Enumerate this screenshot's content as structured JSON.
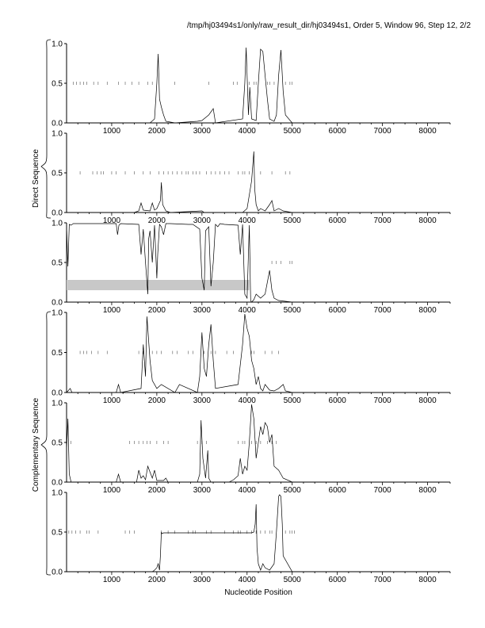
{
  "header": {
    "title": "/tmp/hj03494s1/only/raw_result_dir/hj03494s1, Order 5, Window 96, Step 12, 2/2"
  },
  "group_labels": {
    "direct": "Direct Sequence",
    "complementary": "Complementary Sequence"
  },
  "xlabel": "Nucleotide Position",
  "chart_data": {
    "type": "line",
    "title": "/tmp/hj03494s1/only/raw_result_dir/hj03494s1, Order 5, Window 96, Step 12, 2/2",
    "xlabel": "Nucleotide Position",
    "xlim": [
      0,
      8500
    ],
    "ylim": [
      0,
      1
    ],
    "x_ticks": [
      1000,
      2000,
      3000,
      4000,
      5000,
      6000,
      7000,
      8000
    ],
    "y_ticks": [
      0.0,
      0.5,
      1.0
    ],
    "y_tick_labels": [
      "0.0",
      "0.5",
      "1.0"
    ],
    "grid": false,
    "panels": [
      {
        "group": "Direct Sequence",
        "series": [
          {
            "x": [
              0,
              1850,
              1950,
              2000,
              2030,
              2060,
              2100,
              2150,
              2200,
              2400,
              2900,
              3000,
              3150,
              3250,
              3300,
              3900,
              3950,
              3980,
              4000,
              4030,
              4060,
              4100,
              4200,
              4250,
              4300,
              4350,
              4400,
              4450,
              4500,
              4600,
              4650,
              4700,
              4750,
              4800,
              4850,
              5000,
              8500
            ],
            "y": [
              0,
              0,
              0.05,
              0.5,
              0.87,
              0.3,
              0.2,
              0.1,
              0.02,
              0,
              0.02,
              0.03,
              0.1,
              0.18,
              0,
              0.05,
              0.5,
              0.95,
              0.6,
              0.1,
              0.45,
              0.05,
              0.03,
              0.5,
              0.93,
              0.9,
              0.6,
              0.3,
              0.05,
              0.02,
              0.1,
              0.6,
              0.92,
              0.4,
              0.1,
              0,
              0
            ]
          }
        ],
        "markers": [
          150,
          220,
          300,
          380,
          450,
          600,
          700,
          900,
          1150,
          1300,
          1450,
          1600,
          1800,
          1900,
          2400,
          3150,
          3700,
          3780,
          4050,
          4150,
          4200,
          4450,
          4500,
          4600,
          4850,
          4950,
          5000
        ]
      },
      {
        "group": "Direct Sequence",
        "series": [
          {
            "x": [
              0,
              1500,
              1600,
              1650,
              1700,
              1850,
              1900,
              1950,
              2000,
              2080,
              2100,
              2130,
              2200,
              2300,
              3000,
              3050,
              3900,
              4000,
              4100,
              4150,
              4170,
              4200,
              4250,
              4300,
              4400,
              4500,
              4550,
              4600,
              4700,
              4800,
              5000,
              8500
            ],
            "y": [
              0,
              0,
              0.02,
              0.12,
              0.03,
              0.02,
              0.12,
              0.03,
              0.05,
              0.15,
              0.38,
              0.1,
              0.02,
              0,
              0.02,
              0,
              0,
              0.05,
              0.4,
              0.77,
              0.3,
              0.1,
              0.02,
              0.05,
              0.02,
              0.1,
              0.15,
              0.02,
              0.05,
              0.02,
              0,
              0
            ]
          }
        ],
        "markers": [
          300,
          580,
          680,
          760,
          820,
          1000,
          1100,
          1300,
          1500,
          1700,
          1850,
          2050,
          2150,
          2250,
          2350,
          2450,
          2550,
          2650,
          2700,
          2800,
          2870,
          2950,
          3100,
          3200,
          3300,
          3400,
          3500,
          3600,
          3800,
          3900,
          3950,
          4050,
          4300,
          4550,
          4850,
          4950
        ]
      },
      {
        "group": "",
        "series": [
          {
            "x": [
              0,
              30,
              60,
              100,
              150,
              1100,
              1130,
              1160,
              1200,
              1600,
              1650,
              1700,
              1750,
              1800,
              1820,
              1850,
              1900,
              1950,
              2000,
              2020,
              2060,
              2100,
              2150,
              2200,
              2300,
              2700,
              2800,
              2950,
              3000,
              3050,
              3080,
              3150,
              3200,
              3250,
              3300,
              3350,
              3400,
              3500,
              3800,
              3850,
              3900,
              3950,
              4000,
              4050,
              4080,
              4100,
              4150,
              4200,
              4300,
              4400,
              4500,
              4550,
              4600,
              4700,
              5000,
              8500
            ],
            "y": [
              0.95,
              0.45,
              0.98,
              0.97,
              0.99,
              0.99,
              0.85,
              0.97,
              0.99,
              0.98,
              0.6,
              0.92,
              0.5,
              0.1,
              0.8,
              0.9,
              0.5,
              0.97,
              0.3,
              0.6,
              0.98,
              0.95,
              0.85,
              0.99,
              0.99,
              0.98,
              0.98,
              0.92,
              0.3,
              0.15,
              0.9,
              0.95,
              0.2,
              0.5,
              0.98,
              0.95,
              0.99,
              0.98,
              0.97,
              0.6,
              0.98,
              0.1,
              0.05,
              0.97,
              0.02,
              0,
              0.03,
              0.1,
              0.05,
              0.1,
              0.4,
              0.15,
              0.05,
              0.02,
              0,
              0
            ]
          }
        ],
        "band": {
          "x": [
            0,
            4050
          ],
          "y": [
            0.15,
            0.28
          ]
        },
        "markers": [
          4550,
          4650,
          4750,
          4950,
          5000
        ]
      },
      {
        "group": "Complementary Sequence",
        "series": [
          {
            "x": [
              0,
              80,
              120,
              1100,
              1150,
              1200,
              1650,
              1700,
              1750,
              1780,
              1800,
              1850,
              1900,
              2000,
              2100,
              2400,
              2500,
              2900,
              2950,
              3000,
              3050,
              3100,
              3150,
              3200,
              3250,
              3300,
              3800,
              3900,
              3950,
              4000,
              4050,
              4100,
              4150,
              4200,
              4250,
              4300,
              4350,
              4400,
              4500,
              4600,
              4700,
              4800,
              4850,
              5000,
              8500
            ],
            "y": [
              0,
              0.05,
              0,
              0,
              0.1,
              0,
              0.05,
              0.6,
              0.2,
              0.95,
              0.8,
              0.4,
              0.15,
              0.05,
              0.1,
              0,
              0.1,
              0,
              0.2,
              0.75,
              0.3,
              0.2,
              0.6,
              0.85,
              0.4,
              0.05,
              0.1,
              0.6,
              0.98,
              0.8,
              0.7,
              0.4,
              0.3,
              0.1,
              0.2,
              0.05,
              0.02,
              0.1,
              0.03,
              0.02,
              0.05,
              0.1,
              0.02,
              0,
              0
            ]
          }
        ],
        "markers": [
          300,
          380,
          450,
          550,
          700,
          900,
          1600,
          1700,
          1900,
          2000,
          2100,
          2350,
          2450,
          2700,
          2800,
          3050,
          3200,
          3300,
          3550,
          3700,
          4100,
          4150,
          4400,
          4550,
          4700
        ]
      },
      {
        "group": "Complementary Sequence",
        "series": [
          {
            "x": [
              0,
              30,
              60,
              100,
              1100,
              1150,
              1200,
              1550,
              1600,
              1650,
              1700,
              1750,
              1800,
              1900,
              1950,
              2000,
              2150,
              2200,
              2250,
              2900,
              2950,
              2980,
              3020,
              3080,
              3130,
              3150,
              3200,
              3600,
              3700,
              3800,
              3850,
              3900,
              3950,
              4000,
              4050,
              4100,
              4150,
              4200,
              4250,
              4300,
              4350,
              4400,
              4450,
              4500,
              4550,
              4600,
              4700,
              4800,
              5000,
              8500
            ],
            "y": [
              0.4,
              0.8,
              0.1,
              0,
              0,
              0.1,
              0,
              0,
              0.15,
              0.05,
              0.08,
              0.03,
              0.2,
              0.05,
              0.15,
              0.02,
              0.02,
              0.05,
              0,
              0,
              0.1,
              0.78,
              0.3,
              0.05,
              0.4,
              0.05,
              0,
              0,
              0.03,
              0.08,
              0.3,
              0.1,
              0.2,
              0.15,
              0.5,
              0.98,
              0.8,
              0.3,
              0.5,
              0.7,
              0.6,
              0.75,
              0.7,
              0.5,
              0.6,
              0.2,
              0.15,
              0.05,
              0,
              0
            ]
          }
        ],
        "markers": [
          100,
          1400,
          1500,
          1600,
          1700,
          1780,
          1850,
          2000,
          2150,
          2250,
          2900,
          3000,
          3100,
          3800,
          3900,
          3950,
          4100,
          4200,
          4300,
          4450,
          4550,
          4650
        ]
      },
      {
        "group": "Complementary Sequence",
        "series": [
          {
            "x": [
              0,
              1900,
              1950,
              2000,
              2030,
              2060,
              2080,
              2100,
              2110,
              2150,
              4000,
              4100,
              4150,
              4180,
              4200,
              4220,
              4250,
              4280,
              4300,
              4350,
              4400,
              4500,
              4600,
              4650,
              4700,
              4720,
              4750,
              4780,
              4800,
              5000,
              8500
            ],
            "y": [
              0,
              0,
              0.02,
              0.05,
              0.1,
              0.02,
              0.2,
              0.5,
              0.48,
              0.49,
              0.49,
              0.49,
              0.5,
              0.6,
              0.85,
              0.3,
              0.1,
              0.05,
              0.02,
              0.1,
              0.05,
              0.02,
              0.1,
              0.5,
              0.95,
              0.97,
              0.95,
              0.6,
              0.2,
              0,
              0
            ]
          }
        ],
        "markers": [
          50,
          120,
          200,
          300,
          450,
          500,
          700,
          1300,
          1400,
          1500,
          2100,
          2250,
          2400,
          2700,
          2800,
          2850,
          3100,
          3200,
          3500,
          3700,
          3800,
          3850,
          4000,
          4100,
          4200,
          4300,
          4400,
          4500,
          4550,
          4850,
          4950,
          5000,
          5050
        ]
      }
    ]
  }
}
